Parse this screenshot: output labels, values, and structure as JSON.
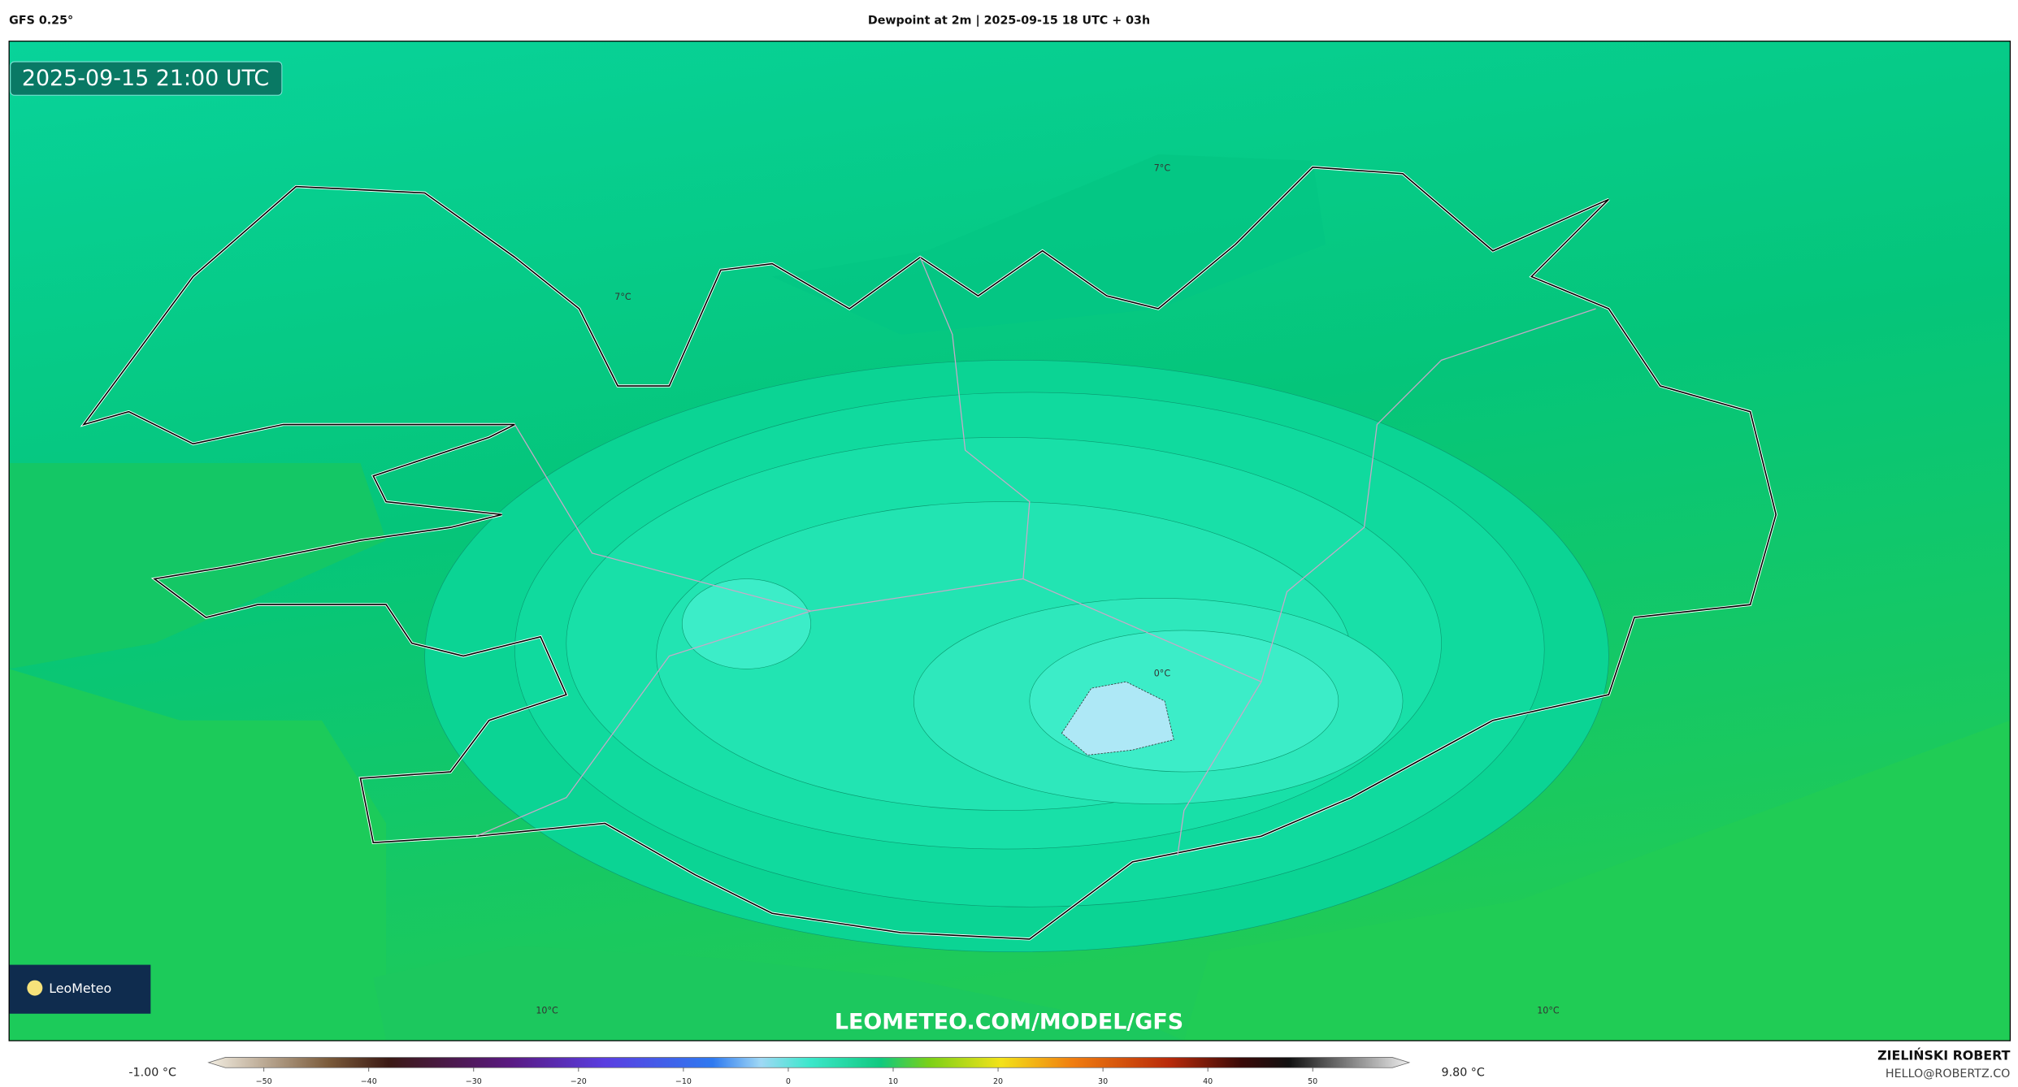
{
  "header": {
    "model": "GFS 0.25°",
    "title": "Dewpoint at 2m | 2025-09-15 18 UTC + 03h"
  },
  "map": {
    "timestamp": "2025-09-15 21:00 UTC",
    "contour_labels": [
      "7°C",
      "7°C",
      "0°C",
      "10°C",
      "10°C"
    ],
    "logo": "LeoMeteo",
    "watermark": "LEOMETEO.COM/MODEL/GFS"
  },
  "colorbar": {
    "min_label": "-1.00 °C",
    "max_label": "9.80 °C",
    "ticks": [
      "−50",
      "−40",
      "−30",
      "−20",
      "−10",
      "0",
      "10",
      "20",
      "30",
      "40",
      "50"
    ]
  },
  "credits": {
    "author": "ZIELIŃSKI ROBERT",
    "email": "HELLO@ROBERTZ.CO"
  }
}
